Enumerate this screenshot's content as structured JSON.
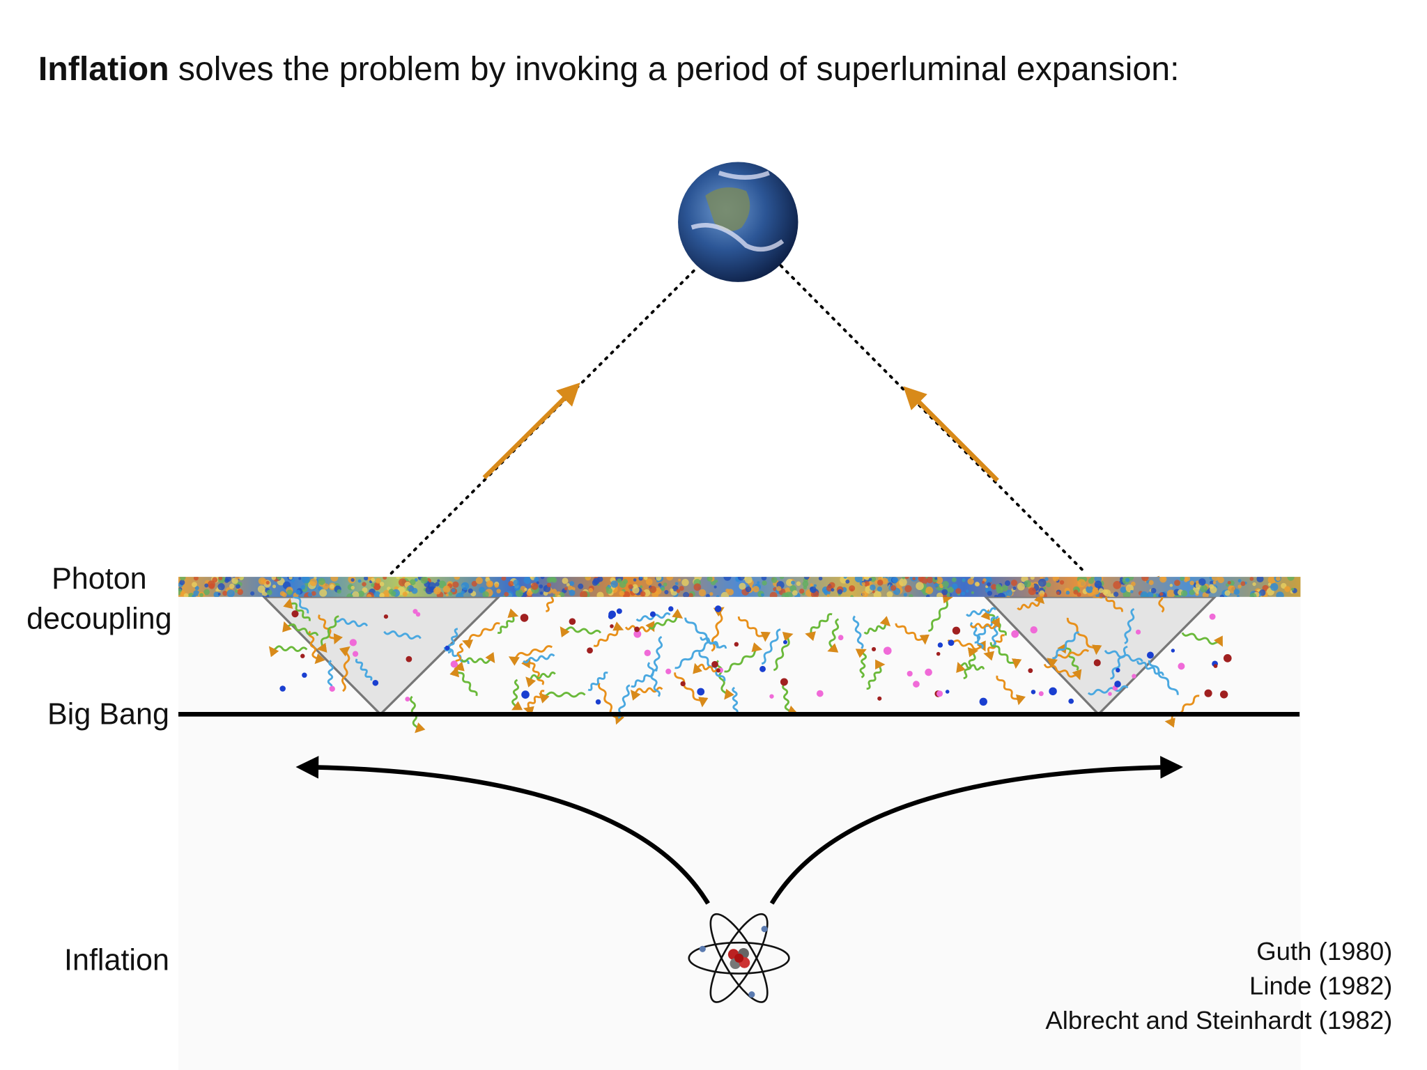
{
  "title": {
    "bold": "Inflation",
    "rest": "solves the problem by invoking a period of superluminal expansion:"
  },
  "labels": {
    "photon_decoupling": [
      "Photon",
      "decoupling"
    ],
    "big_bang": "Big Bang",
    "inflation": "Inflation"
  },
  "references": [
    "Guth (1980)",
    "Linde (1982)",
    "Albrecht and Steinhardt (1982)"
  ]
}
